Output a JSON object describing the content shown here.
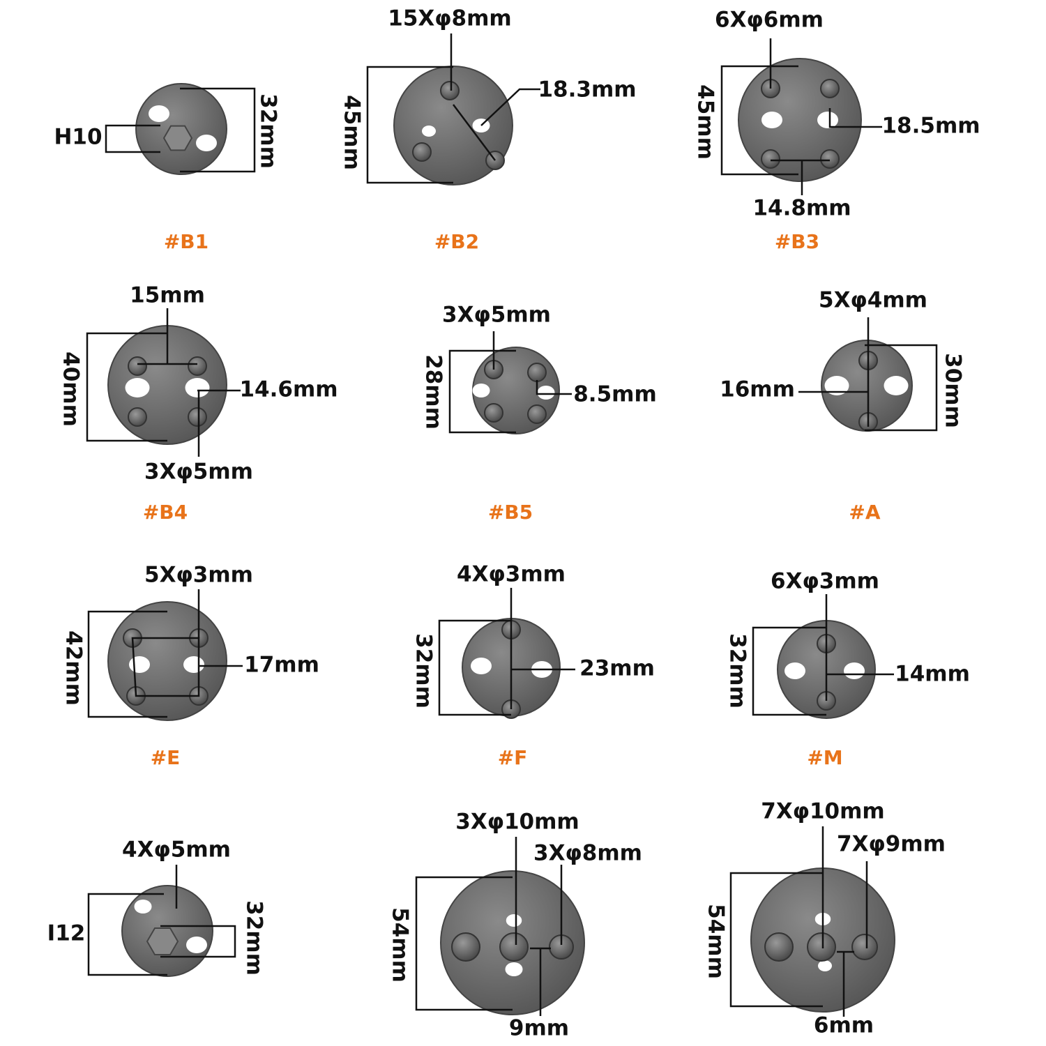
{
  "panels": [
    {
      "caption": "#B1",
      "labels": [
        "H10",
        "32mm"
      ]
    },
    {
      "caption": "#B2",
      "labels": [
        "15Xφ8mm",
        "18.3mm",
        "45mm"
      ]
    },
    {
      "caption": "#B3",
      "labels": [
        "6Xφ6mm",
        "18.5mm",
        "14.8mm",
        "45mm"
      ]
    },
    {
      "caption": "#B4",
      "labels": [
        "15mm",
        "14.6mm",
        "3Xφ5mm",
        "40mm"
      ]
    },
    {
      "caption": "#B5",
      "labels": [
        "3Xφ5mm",
        "8.5mm",
        "28mm"
      ]
    },
    {
      "caption": "#A",
      "labels": [
        "5Xφ4mm",
        "16mm",
        "30mm"
      ]
    },
    {
      "caption": "#E",
      "labels": [
        "5Xφ3mm",
        "17mm",
        "42mm"
      ]
    },
    {
      "caption": "#F",
      "labels": [
        "4Xφ3mm",
        "23mm",
        "32mm"
      ]
    },
    {
      "caption": "#M",
      "labels": [
        "6Xφ3mm",
        "14mm",
        "32mm"
      ]
    },
    {
      "labels": [
        "4Xφ5mm",
        "I12",
        "32mm"
      ]
    },
    {
      "labels": [
        "3Xφ10mm",
        "3Xφ8mm",
        "54mm",
        "9mm"
      ]
    },
    {
      "labels": [
        "7Xφ10mm",
        "7Xφ9mm",
        "54mm",
        "6mm"
      ]
    }
  ]
}
